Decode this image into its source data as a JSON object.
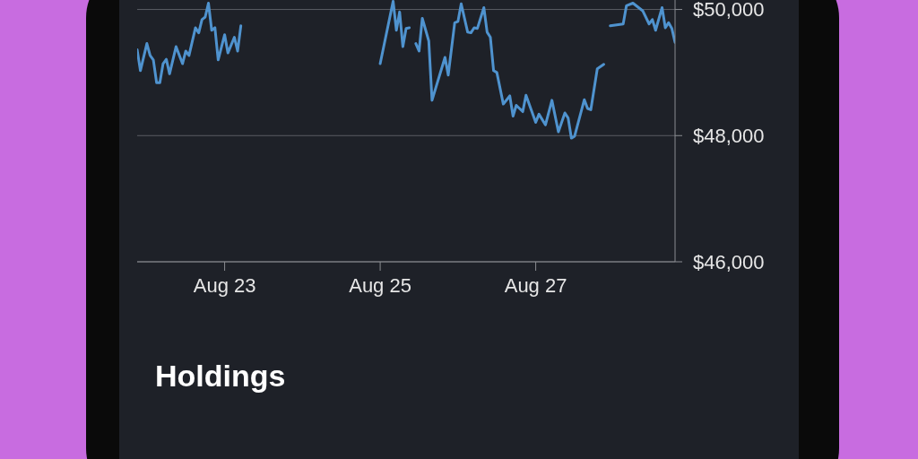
{
  "chart_data": {
    "type": "line",
    "x": [
      "--08-21T21:00",
      "--08-21T22:00",
      "--08-22T00:00",
      "--08-22T01:00",
      "--08-22T02:00",
      "--08-22T03:00",
      "--08-22T04:00",
      "--08-22T05:00",
      "--08-22T06:00",
      "--08-22T07:00",
      "--08-22T09:00",
      "--08-22T11:00",
      "--08-22T12:00",
      "--08-22T13:00",
      "--08-22T15:00",
      "--08-22T16:00",
      "--08-22T17:00",
      "--08-22T18:00",
      "--08-22T19:00",
      "--08-22T20:00",
      "--08-22T21:00",
      "--08-22T22:00",
      "--08-23T00:00",
      "--08-23T01:00",
      "--08-23T03:00",
      "--08-23T04:00",
      "--08-23T05:00",
      "--08-24T00:00",
      "--08-25T00:00",
      "--08-25T04:00",
      "--08-25T05:00",
      "--08-25T06:00",
      "--08-25T07:00",
      "--08-25T08:00",
      "--08-25T09:00",
      "--08-25T10:00",
      "--08-25T11:00",
      "--08-25T12:00",
      "--08-25T13:00",
      "--08-25T15:00",
      "--08-25T16:00",
      "--08-25T20:00",
      "--08-25T21:00",
      "--08-25T23:00",
      "--08-26T00:00",
      "--08-26T01:00",
      "--08-26T03:00",
      "--08-26T04:00",
      "--08-26T05:00",
      "--08-26T06:00",
      "--08-26T08:00",
      "--08-26T09:00",
      "--08-26T10:00",
      "--08-26T11:00",
      "--08-26T12:00",
      "--08-26T14:00",
      "--08-26T16:00",
      "--08-26T17:00",
      "--08-26T18:00",
      "--08-26T20:00",
      "--08-26T21:00",
      "--08-27T00:00",
      "--08-27T01:00",
      "--08-27T03:00",
      "--08-27T05:00",
      "--08-27T07:00",
      "--08-27T09:00",
      "--08-27T10:00",
      "--08-27T11:00",
      "--08-27T12:00",
      "--08-27T15:00",
      "--08-27T16:00",
      "--08-27T17:00",
      "--08-27T19:00",
      "--08-27T21:00",
      "--08-27T22:00",
      "--08-27T23:00",
      "--08-28T03:00",
      "--08-28T04:00",
      "--08-28T06:00",
      "--08-28T09:00",
      "--08-28T11:00",
      "--08-28T12:00",
      "--08-28T13:00",
      "--08-28T15:00",
      "--08-28T16:00",
      "--08-28T17:00",
      "--08-28T18:00",
      "--08-28T19:00"
    ],
    "series": [
      {
        "color": "#4f93cf",
        "values": [
          49360,
          49030,
          49460,
          49270,
          49200,
          48840,
          48840,
          49140,
          49210,
          48980,
          49410,
          49140,
          49340,
          49270,
          49710,
          49630,
          49840,
          49880,
          50100,
          49670,
          49710,
          49200,
          49600,
          49310,
          49560,
          49340,
          49740,
          null,
          49140,
          50130,
          49670,
          49960,
          49410,
          49700,
          49710,
          null,
          49460,
          49340,
          49860,
          49500,
          48560,
          49240,
          48960,
          49790,
          49810,
          50090,
          49640,
          49630,
          49710,
          49700,
          50030,
          49640,
          49560,
          49030,
          49000,
          48500,
          48630,
          48310,
          48480,
          48380,
          48640,
          48210,
          48340,
          48170,
          48560,
          48060,
          48360,
          48280,
          47960,
          47990,
          48570,
          48430,
          48410,
          49060,
          49130,
          null,
          49740,
          49770,
          50060,
          50100,
          49980,
          49770,
          49840,
          49670,
          50030,
          49710,
          49790,
          49700,
          49480
        ]
      }
    ],
    "xlim": [
      "--08-21T21:00",
      "--08-28T19:00"
    ],
    "xticks": [
      {
        "value": "--08-23",
        "label": "Aug 23"
      },
      {
        "value": "--08-25",
        "label": "Aug 25"
      },
      {
        "value": "--08-27",
        "label": "Aug 27"
      }
    ],
    "ylim": [
      46000,
      50150
    ],
    "yticks": [
      {
        "value": 46000,
        "label": "$46,000"
      },
      {
        "value": 48000,
        "label": "$48,000"
      },
      {
        "value": 50000,
        "label": "$50,000"
      }
    ],
    "grid": "y",
    "marker": "none",
    "line_style": "solid",
    "annotations": [
      "Holdings"
    ]
  }
}
